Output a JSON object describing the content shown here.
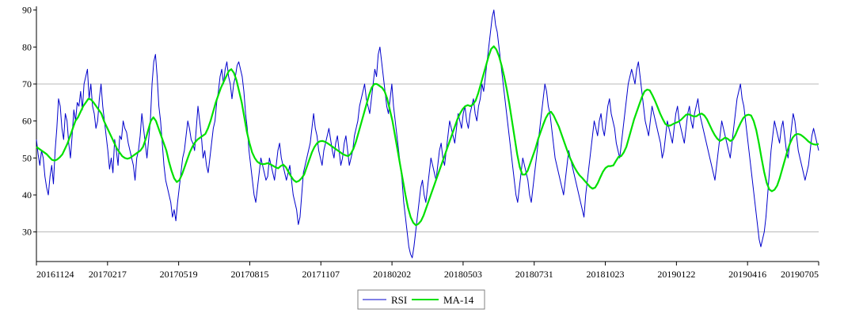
{
  "chart_data": {
    "type": "line",
    "title": "",
    "xlabel": "",
    "ylabel": "",
    "x_tick_labels": [
      "20161124",
      "20170217",
      "20170519",
      "20170815",
      "20171107",
      "20180202",
      "20180503",
      "20180731",
      "20181023",
      "20190122",
      "20190416",
      "20190705"
    ],
    "y_ticks": [
      30,
      40,
      50,
      60,
      70,
      80,
      90
    ],
    "ylim": [
      22,
      91
    ],
    "grid": "horizontal lines at 70 and 30",
    "legend_position": "bottom-center",
    "series": [
      {
        "name": "RSI",
        "color": "#0000cc",
        "values": [
          55,
          51,
          48,
          52,
          50,
          45,
          42,
          40,
          45,
          48,
          43,
          52,
          58,
          66,
          64,
          58,
          55,
          62,
          60,
          54,
          50,
          56,
          63,
          60,
          65,
          64,
          68,
          63,
          70,
          72,
          74,
          66,
          70,
          64,
          62,
          58,
          60,
          66,
          70,
          64,
          60,
          56,
          52,
          47,
          50,
          46,
          55,
          52,
          48,
          56,
          55,
          60,
          58,
          57,
          54,
          52,
          50,
          48,
          44,
          50,
          52,
          56,
          62,
          58,
          54,
          50,
          55,
          60,
          70,
          76,
          78,
          72,
          64,
          60,
          54,
          48,
          44,
          42,
          40,
          38,
          34,
          36,
          33,
          38,
          42,
          46,
          50,
          52,
          56,
          60,
          58,
          55,
          54,
          52,
          58,
          64,
          60,
          56,
          50,
          52,
          48,
          46,
          50,
          54,
          58,
          60,
          65,
          68,
          72,
          74,
          70,
          74,
          76,
          72,
          70,
          66,
          70,
          72,
          75,
          76,
          74,
          72,
          68,
          62,
          58,
          52,
          48,
          44,
          40,
          38,
          42,
          46,
          50,
          48,
          46,
          44,
          45,
          50,
          48,
          46,
          44,
          48,
          52,
          54,
          50,
          48,
          46,
          44,
          46,
          48,
          44,
          40,
          38,
          36,
          32,
          34,
          40,
          46,
          48,
          50,
          52,
          54,
          58,
          62,
          58,
          56,
          52,
          50,
          48,
          52,
          54,
          56,
          58,
          55,
          52,
          50,
          54,
          56,
          52,
          48,
          50,
          54,
          56,
          52,
          48,
          50,
          52,
          56,
          58,
          60,
          64,
          66,
          68,
          70,
          66,
          64,
          62,
          66,
          70,
          74,
          72,
          78,
          80,
          76,
          72,
          68,
          64,
          62,
          66,
          70,
          64,
          60,
          56,
          52,
          48,
          44,
          38,
          34,
          30,
          26,
          24,
          23,
          26,
          30,
          34,
          38,
          42,
          44,
          40,
          38,
          42,
          46,
          50,
          48,
          46,
          44,
          48,
          52,
          54,
          50,
          48,
          52,
          56,
          60,
          58,
          56,
          54,
          58,
          62,
          60,
          58,
          62,
          64,
          60,
          58,
          62,
          64,
          66,
          62,
          60,
          64,
          66,
          70,
          68,
          72,
          76,
          80,
          84,
          88,
          90,
          86,
          84,
          80,
          76,
          72,
          68,
          64,
          60,
          56,
          52,
          48,
          44,
          40,
          38,
          42,
          46,
          50,
          48,
          46,
          44,
          40,
          38,
          42,
          46,
          50,
          54,
          58,
          62,
          66,
          70,
          68,
          64,
          62,
          58,
          54,
          50,
          48,
          46,
          44,
          42,
          40,
          44,
          48,
          52,
          50,
          48,
          46,
          44,
          42,
          40,
          38,
          36,
          34,
          40,
          44,
          48,
          52,
          56,
          60,
          58,
          56,
          60,
          62,
          58,
          56,
          60,
          64,
          66,
          62,
          60,
          58,
          54,
          52,
          50,
          54,
          58,
          62,
          66,
          70,
          72,
          74,
          72,
          70,
          74,
          76,
          72,
          68,
          64,
          60,
          58,
          56,
          60,
          64,
          62,
          60,
          58,
          56,
          54,
          50,
          52,
          56,
          60,
          58,
          56,
          54,
          58,
          62,
          64,
          60,
          58,
          56,
          54,
          58,
          62,
          64,
          60,
          58,
          62,
          64,
          66,
          62,
          60,
          58,
          56,
          54,
          52,
          50,
          48,
          46,
          44,
          48,
          52,
          56,
          60,
          58,
          56,
          54,
          52,
          50,
          54,
          58,
          62,
          66,
          68,
          70,
          66,
          64,
          60,
          56,
          52,
          48,
          44,
          40,
          36,
          32,
          28,
          26,
          28,
          30,
          34,
          40,
          46,
          52,
          56,
          60,
          58,
          56,
          54,
          58,
          60,
          56,
          52,
          50,
          54,
          58,
          62,
          60,
          56,
          52,
          50,
          48,
          46,
          44,
          46,
          48,
          52,
          56,
          58,
          56,
          54,
          52
        ]
      },
      {
        "name": "MA-14",
        "color": "#00e000",
        "values": [
          53,
          52.5,
          52,
          51.5,
          51,
          50.2,
          49.5,
          49.3,
          49.6,
          50.2,
          51,
          52.5,
          54,
          56,
          58,
          60,
          61,
          62.5,
          64,
          65,
          66,
          65.8,
          65,
          64,
          63,
          62,
          60,
          58.5,
          57,
          55.5,
          54,
          52.5,
          51.5,
          50.5,
          50,
          49.8,
          50,
          50.5,
          51,
          51.5,
          52,
          53,
          55,
          57.5,
          60,
          61,
          60,
          58,
          56,
          54,
          52,
          49,
          46.5,
          44.5,
          43.5,
          44,
          45.5,
          47.5,
          49.5,
          51.5,
          53,
          54.2,
          55,
          55.5,
          56,
          56.5,
          58,
          60,
          62.5,
          65,
          67,
          69,
          70.5,
          72,
          73.5,
          74,
          73,
          71,
          68,
          65,
          61,
          57,
          54,
          51.5,
          50,
          49,
          48.5,
          48.3,
          48.4,
          48.6,
          48.3,
          47.9,
          47.5,
          47.2,
          47.8,
          48.2,
          47.5,
          46.2,
          45,
          44,
          43.5,
          43.8,
          44.5,
          45.5,
          47.5,
          49.5,
          51.5,
          53,
          54,
          54.5,
          54.6,
          54.4,
          54,
          53.5,
          53,
          52.5,
          52,
          51.5,
          51,
          50.7,
          50.5,
          51.2,
          52.5,
          54.5,
          57,
          59.5,
          62,
          64.5,
          67,
          69,
          70,
          70,
          69.5,
          69,
          68,
          66,
          63,
          60,
          56,
          52,
          48,
          44,
          40,
          36.5,
          34,
          32.5,
          31.8,
          32.2,
          33,
          34.5,
          36.5,
          38.5,
          40.5,
          42.5,
          44.5,
          46.5,
          48.5,
          50.5,
          52.5,
          54.5,
          56.5,
          58.5,
          60.5,
          62,
          63.2,
          64,
          64.3,
          64,
          64.5,
          65.5,
          67.5,
          70,
          72.5,
          75,
          77.5,
          79.5,
          80.2,
          79.3,
          77.5,
          75,
          72,
          68.5,
          64.5,
          60,
          55.5,
          51,
          47.5,
          45.5,
          45.5,
          46.5,
          48.5,
          50.5,
          52.5,
          55,
          57,
          59,
          60.8,
          62,
          62.5,
          61.5,
          60,
          58.5,
          56.5,
          54.5,
          52.5,
          50.5,
          49,
          47.5,
          46.3,
          45.3,
          44.6,
          43.8,
          43,
          42.2,
          41.7,
          42,
          43.2,
          44.8,
          46.3,
          47.3,
          47.8,
          47.8,
          48,
          49.2,
          50.3,
          50.5,
          51.5,
          53,
          55.5,
          58,
          60.5,
          62.5,
          64.5,
          66.5,
          68,
          68.5,
          68.3,
          67,
          65.5,
          63.8,
          62,
          60.5,
          59.2,
          58.7,
          58.8,
          59.2,
          59.5,
          59.8,
          60.3,
          61,
          61.7,
          61.8,
          61.5,
          61.2,
          61.3,
          61.8,
          62,
          61.5,
          60.5,
          59,
          57.5,
          56.2,
          55.2,
          54.6,
          55,
          55.5,
          55.2,
          54.6,
          55,
          56.3,
          58,
          59.5,
          60.8,
          61.5,
          61.7,
          61.5,
          60,
          57.5,
          54,
          50,
          46.3,
          43.3,
          41.5,
          41,
          41.4,
          42.5,
          44.5,
          47,
          49.5,
          52,
          54,
          55.5,
          56.3,
          56.5,
          56.3,
          55.8,
          55.2,
          54.5,
          54,
          53.7,
          53.6,
          53.8
        ]
      }
    ]
  }
}
